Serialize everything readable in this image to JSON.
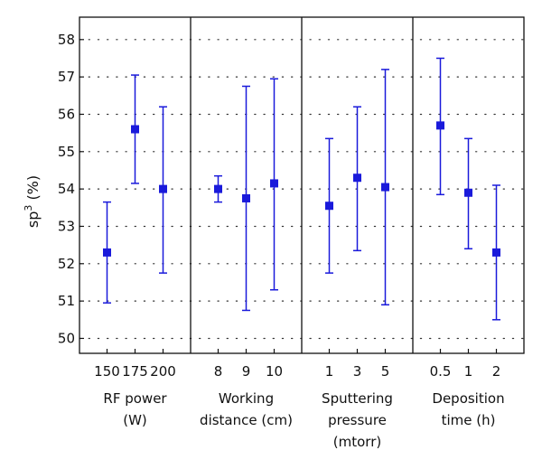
{
  "chart_data": {
    "type": "scatter",
    "ylabel_base": "sp",
    "ylabel_sup": "3",
    "ylabel_rest": " (%)",
    "ylim": [
      49.6,
      58.6
    ],
    "yticks": [
      50,
      51,
      52,
      53,
      54,
      55,
      56,
      57,
      58
    ],
    "grid": "dotted horizontal",
    "colors": {
      "series": "#1a1adb",
      "frame": "#111111",
      "grid": "#333333"
    },
    "panels": [
      {
        "label_lines": [
          "RF power",
          "(W)"
        ],
        "categories": [
          "150",
          "175",
          "200"
        ],
        "mean": [
          52.3,
          55.6,
          54.0
        ],
        "lower": [
          50.95,
          54.15,
          51.75
        ],
        "upper": [
          53.65,
          57.05,
          56.2
        ]
      },
      {
        "label_lines": [
          "Working",
          "distance (cm)"
        ],
        "categories": [
          "8",
          "9",
          "10"
        ],
        "mean": [
          54.0,
          53.75,
          54.15
        ],
        "lower": [
          53.65,
          50.75,
          51.3
        ],
        "upper": [
          54.35,
          56.75,
          56.95
        ]
      },
      {
        "label_lines": [
          "Sputtering",
          "pressure",
          "(mtorr)"
        ],
        "categories": [
          "1",
          "3",
          "5"
        ],
        "mean": [
          53.55,
          54.3,
          54.05
        ],
        "lower": [
          51.75,
          52.35,
          50.9
        ],
        "upper": [
          55.35,
          56.2,
          57.2
        ]
      },
      {
        "label_lines": [
          "Deposition",
          "time (h)"
        ],
        "categories": [
          "0.5",
          "1",
          "2"
        ],
        "mean": [
          55.7,
          53.9,
          52.3
        ],
        "lower": [
          53.85,
          52.4,
          50.5
        ],
        "upper": [
          57.5,
          55.35,
          54.1
        ]
      }
    ]
  }
}
